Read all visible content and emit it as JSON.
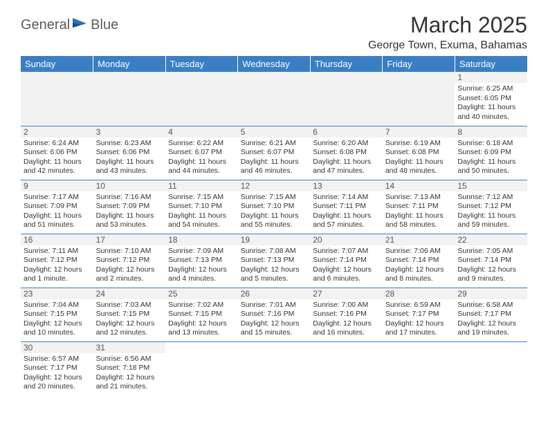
{
  "logo": {
    "text1": "General",
    "text2": "Blue"
  },
  "title": "March 2025",
  "location": "George Town, Exuma, Bahamas",
  "colors": {
    "header_bg": "#3a7fc4",
    "header_text": "#ffffff",
    "logo_gray": "#5a5a5a",
    "logo_blue": "#2e6fb5",
    "cell_border": "#3a7fc4",
    "daynum_bg": "#f2f2f2",
    "text": "#333333"
  },
  "day_headers": [
    "Sunday",
    "Monday",
    "Tuesday",
    "Wednesday",
    "Thursday",
    "Friday",
    "Saturday"
  ],
  "weeks": [
    [
      null,
      null,
      null,
      null,
      null,
      null,
      {
        "n": "1",
        "sr": "Sunrise: 6:25 AM",
        "ss": "Sunset: 6:05 PM",
        "dl": "Daylight: 11 hours and 40 minutes."
      }
    ],
    [
      {
        "n": "2",
        "sr": "Sunrise: 6:24 AM",
        "ss": "Sunset: 6:06 PM",
        "dl": "Daylight: 11 hours and 42 minutes."
      },
      {
        "n": "3",
        "sr": "Sunrise: 6:23 AM",
        "ss": "Sunset: 6:06 PM",
        "dl": "Daylight: 11 hours and 43 minutes."
      },
      {
        "n": "4",
        "sr": "Sunrise: 6:22 AM",
        "ss": "Sunset: 6:07 PM",
        "dl": "Daylight: 11 hours and 44 minutes."
      },
      {
        "n": "5",
        "sr": "Sunrise: 6:21 AM",
        "ss": "Sunset: 6:07 PM",
        "dl": "Daylight: 11 hours and 46 minutes."
      },
      {
        "n": "6",
        "sr": "Sunrise: 6:20 AM",
        "ss": "Sunset: 6:08 PM",
        "dl": "Daylight: 11 hours and 47 minutes."
      },
      {
        "n": "7",
        "sr": "Sunrise: 6:19 AM",
        "ss": "Sunset: 6:08 PM",
        "dl": "Daylight: 11 hours and 48 minutes."
      },
      {
        "n": "8",
        "sr": "Sunrise: 6:18 AM",
        "ss": "Sunset: 6:09 PM",
        "dl": "Daylight: 11 hours and 50 minutes."
      }
    ],
    [
      {
        "n": "9",
        "sr": "Sunrise: 7:17 AM",
        "ss": "Sunset: 7:09 PM",
        "dl": "Daylight: 11 hours and 51 minutes."
      },
      {
        "n": "10",
        "sr": "Sunrise: 7:16 AM",
        "ss": "Sunset: 7:09 PM",
        "dl": "Daylight: 11 hours and 53 minutes."
      },
      {
        "n": "11",
        "sr": "Sunrise: 7:15 AM",
        "ss": "Sunset: 7:10 PM",
        "dl": "Daylight: 11 hours and 54 minutes."
      },
      {
        "n": "12",
        "sr": "Sunrise: 7:15 AM",
        "ss": "Sunset: 7:10 PM",
        "dl": "Daylight: 11 hours and 55 minutes."
      },
      {
        "n": "13",
        "sr": "Sunrise: 7:14 AM",
        "ss": "Sunset: 7:11 PM",
        "dl": "Daylight: 11 hours and 57 minutes."
      },
      {
        "n": "14",
        "sr": "Sunrise: 7:13 AM",
        "ss": "Sunset: 7:11 PM",
        "dl": "Daylight: 11 hours and 58 minutes."
      },
      {
        "n": "15",
        "sr": "Sunrise: 7:12 AM",
        "ss": "Sunset: 7:12 PM",
        "dl": "Daylight: 11 hours and 59 minutes."
      }
    ],
    [
      {
        "n": "16",
        "sr": "Sunrise: 7:11 AM",
        "ss": "Sunset: 7:12 PM",
        "dl": "Daylight: 12 hours and 1 minute."
      },
      {
        "n": "17",
        "sr": "Sunrise: 7:10 AM",
        "ss": "Sunset: 7:12 PM",
        "dl": "Daylight: 12 hours and 2 minutes."
      },
      {
        "n": "18",
        "sr": "Sunrise: 7:09 AM",
        "ss": "Sunset: 7:13 PM",
        "dl": "Daylight: 12 hours and 4 minutes."
      },
      {
        "n": "19",
        "sr": "Sunrise: 7:08 AM",
        "ss": "Sunset: 7:13 PM",
        "dl": "Daylight: 12 hours and 5 minutes."
      },
      {
        "n": "20",
        "sr": "Sunrise: 7:07 AM",
        "ss": "Sunset: 7:14 PM",
        "dl": "Daylight: 12 hours and 6 minutes."
      },
      {
        "n": "21",
        "sr": "Sunrise: 7:06 AM",
        "ss": "Sunset: 7:14 PM",
        "dl": "Daylight: 12 hours and 8 minutes."
      },
      {
        "n": "22",
        "sr": "Sunrise: 7:05 AM",
        "ss": "Sunset: 7:14 PM",
        "dl": "Daylight: 12 hours and 9 minutes."
      }
    ],
    [
      {
        "n": "23",
        "sr": "Sunrise: 7:04 AM",
        "ss": "Sunset: 7:15 PM",
        "dl": "Daylight: 12 hours and 10 minutes."
      },
      {
        "n": "24",
        "sr": "Sunrise: 7:03 AM",
        "ss": "Sunset: 7:15 PM",
        "dl": "Daylight: 12 hours and 12 minutes."
      },
      {
        "n": "25",
        "sr": "Sunrise: 7:02 AM",
        "ss": "Sunset: 7:15 PM",
        "dl": "Daylight: 12 hours and 13 minutes."
      },
      {
        "n": "26",
        "sr": "Sunrise: 7:01 AM",
        "ss": "Sunset: 7:16 PM",
        "dl": "Daylight: 12 hours and 15 minutes."
      },
      {
        "n": "27",
        "sr": "Sunrise: 7:00 AM",
        "ss": "Sunset: 7:16 PM",
        "dl": "Daylight: 12 hours and 16 minutes."
      },
      {
        "n": "28",
        "sr": "Sunrise: 6:59 AM",
        "ss": "Sunset: 7:17 PM",
        "dl": "Daylight: 12 hours and 17 minutes."
      },
      {
        "n": "29",
        "sr": "Sunrise: 6:58 AM",
        "ss": "Sunset: 7:17 PM",
        "dl": "Daylight: 12 hours and 19 minutes."
      }
    ],
    [
      {
        "n": "30",
        "sr": "Sunrise: 6:57 AM",
        "ss": "Sunset: 7:17 PM",
        "dl": "Daylight: 12 hours and 20 minutes."
      },
      {
        "n": "31",
        "sr": "Sunrise: 6:56 AM",
        "ss": "Sunset: 7:18 PM",
        "dl": "Daylight: 12 hours and 21 minutes."
      },
      null,
      null,
      null,
      null,
      null
    ]
  ]
}
